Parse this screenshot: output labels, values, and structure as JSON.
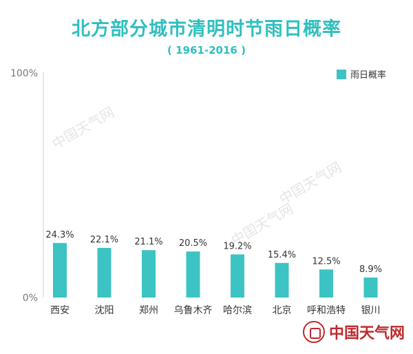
{
  "chart_data": {
    "type": "bar",
    "title": "北方部分城市清明时节雨日概率",
    "subtitle": "( 1961-2016 )",
    "categories": [
      "西安",
      "沈阳",
      "郑州",
      "乌鲁木齐",
      "哈尔滨",
      "北京",
      "呼和浩特",
      "银川"
    ],
    "series": [
      {
        "name": "雨日概率",
        "values": [
          24.3,
          22.1,
          21.1,
          20.5,
          19.2,
          15.4,
          12.5,
          8.9
        ],
        "data_labels": [
          "24.3%",
          "22.1%",
          "21.1%",
          "20.5%",
          "19.2%",
          "15.4%",
          "12.5%",
          "8.9%"
        ]
      }
    ],
    "ylim": [
      0,
      100
    ],
    "y_tick_labels": [
      "100%",
      "0%"
    ],
    "xlabel": "",
    "ylabel": "",
    "legend_position": "top-right",
    "grid": false,
    "bar_color": "#3cc3c3",
    "title_color": "#2fbfbf"
  },
  "watermark": {
    "text": "中国天气网"
  },
  "brand": {
    "logo_text": "中国天气网"
  }
}
